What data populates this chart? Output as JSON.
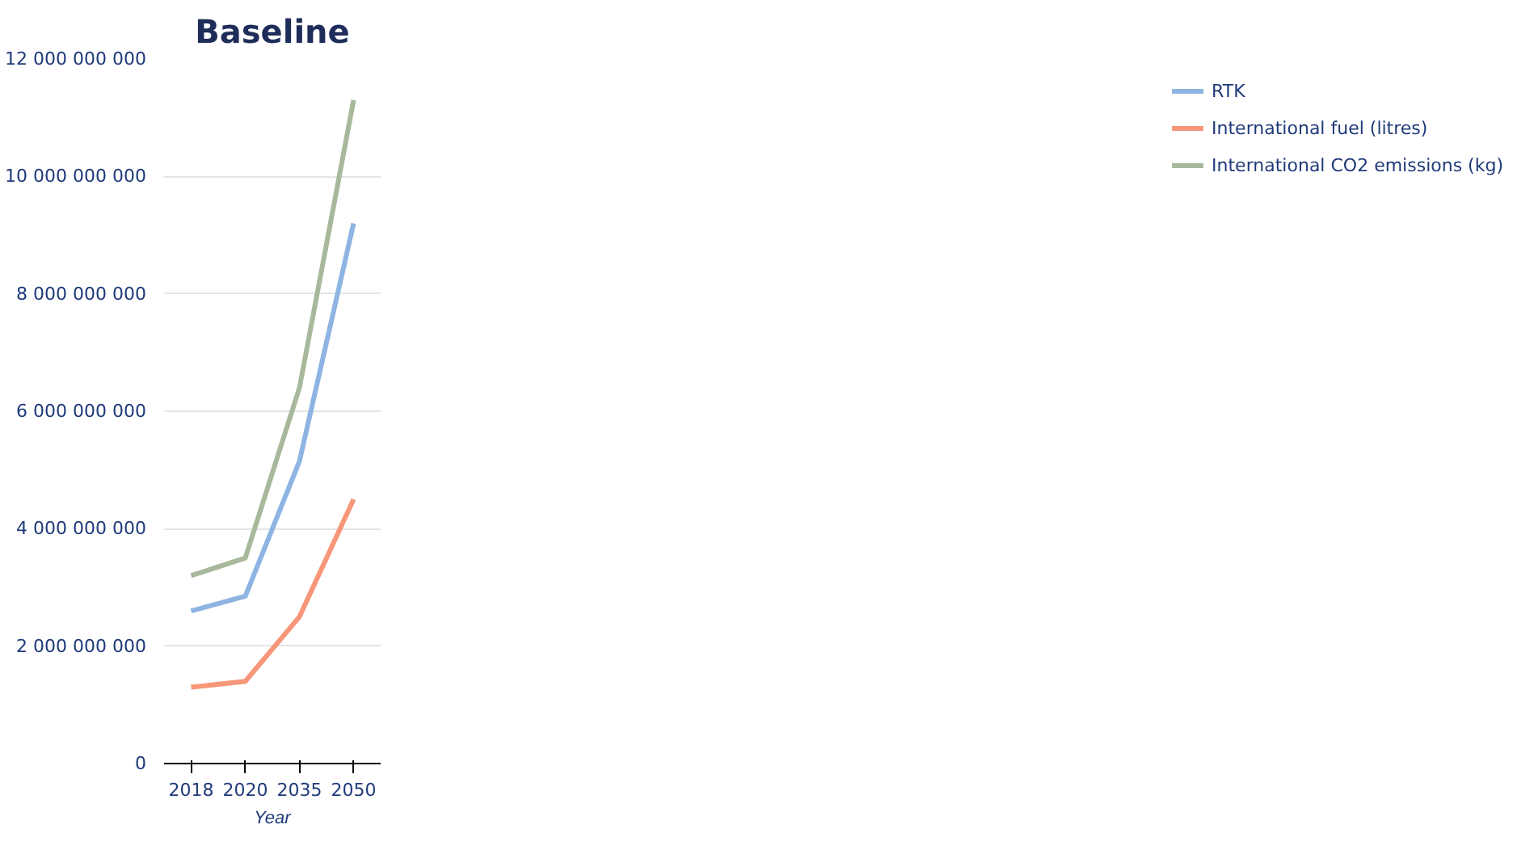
{
  "chart_data": {
    "type": "line",
    "title": "Baseline",
    "xlabel": "Year",
    "categories": [
      "2018",
      "2020",
      "2035",
      "2050"
    ],
    "series": [
      {
        "name": "RTK",
        "color": "#8db4e2",
        "values": [
          2600000000.0,
          2850000000.0,
          5150000000.0,
          9200000000.0
        ]
      },
      {
        "name": "International fuel (litres)",
        "color": "#f79679",
        "values": [
          1300000000.0,
          1400000000.0,
          2500000000.0,
          4500000000.0
        ]
      },
      {
        "name": "International CO2 emissions (kg)",
        "color": "#a8b89a",
        "values": [
          3200000000.0,
          3500000000.0,
          6400000000.0,
          11300000000.0
        ]
      }
    ],
    "ylim": [
      0,
      12000000000.0
    ],
    "yticks": [
      {
        "value": 0,
        "label": "0"
      },
      {
        "value": 2000000000.0,
        "label": "2 000 000 000"
      },
      {
        "value": 4000000000.0,
        "label": "4 000 000 000"
      },
      {
        "value": 6000000000.0,
        "label": "6 000 000 000"
      },
      {
        "value": 8000000000.0,
        "label": "8 000 000 000"
      },
      {
        "value": 10000000000.0,
        "label": "10 000 000 000"
      },
      {
        "value": 12000000000.0,
        "label": "12 000 000 000"
      }
    ],
    "grid": "y",
    "legend": "right",
    "line_style": "solid",
    "marker": "none"
  }
}
